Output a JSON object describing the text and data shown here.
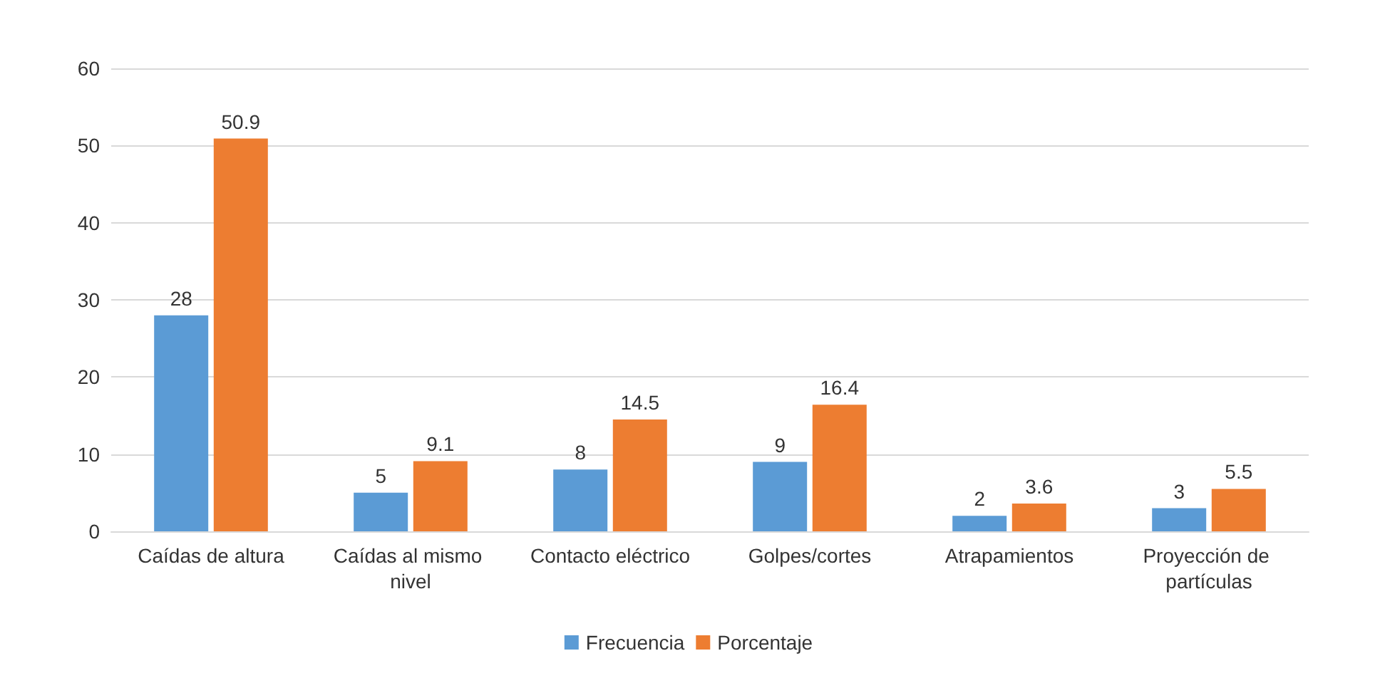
{
  "chart_data": {
    "type": "bar",
    "categories": [
      "Caídas de altura",
      "Caídas al mismo nivel",
      "Contacto eléctrico",
      "Golpes/cortes",
      "Atrapamientos",
      "Proyección de partículas"
    ],
    "series": [
      {
        "name": "Frecuencia",
        "color": "#5b9bd5",
        "values": [
          28,
          5,
          8,
          9,
          2,
          3
        ]
      },
      {
        "name": "Porcentaje",
        "color": "#ed7d31",
        "values": [
          50.9,
          9.1,
          14.5,
          16.4,
          3.6,
          5.5
        ]
      }
    ],
    "ylim": [
      0,
      60
    ],
    "yticks": [
      0,
      10,
      20,
      30,
      40,
      50,
      60
    ],
    "grid": "y",
    "legend": "bottom",
    "data_labels": true
  }
}
